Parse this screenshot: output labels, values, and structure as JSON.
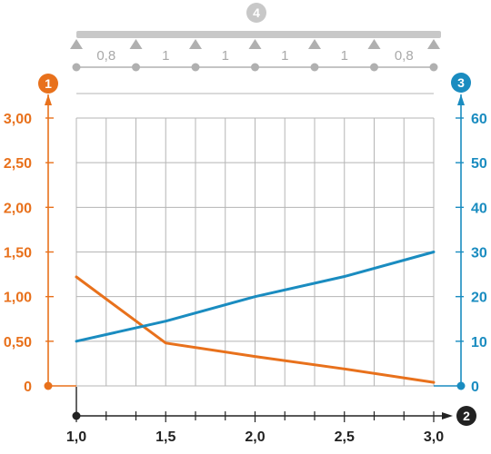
{
  "colors": {
    "left_axis": "#e8711c",
    "right_axis": "#1a8cc0",
    "grid": "#b5b5b5",
    "beam": "#c8c8c8",
    "support": "#b0b0b0",
    "x_axis": "#222222"
  },
  "markers": {
    "left_axis": "1",
    "x_axis": "2",
    "right_axis": "3",
    "beam": "4"
  },
  "beam": {
    "spans": [
      "0,8",
      "1",
      "1",
      "1",
      "1",
      "0,8"
    ]
  },
  "chart_data": {
    "type": "line",
    "title": "",
    "x": {
      "min": 1.0,
      "max": 3.0,
      "ticks": [
        1.0,
        1.5,
        2.0,
        2.5,
        3.0
      ],
      "tick_labels": [
        "1,0",
        "1,5",
        "2,0",
        "2,5",
        "3,0"
      ],
      "minor_step": 0.1667
    },
    "y_left": {
      "min": 0,
      "max": 3.0,
      "ticks": [
        0,
        0.5,
        1.0,
        1.5,
        2.0,
        2.5,
        3.0
      ],
      "tick_labels": [
        "0",
        "0,50",
        "1,00",
        "1,50",
        "2,00",
        "2,50",
        "3,00"
      ]
    },
    "y_right": {
      "min": 0,
      "max": 60,
      "ticks": [
        0,
        10,
        20,
        30,
        40,
        50,
        60
      ],
      "tick_labels": [
        "0",
        "10",
        "20",
        "30",
        "40",
        "50",
        "60"
      ]
    },
    "grid": true,
    "series": [
      {
        "axis": "left",
        "color": "#e8711c",
        "x": [
          1.0,
          1.5,
          2.0,
          2.5,
          3.0
        ],
        "y": [
          1.22,
          0.48,
          0.33,
          0.19,
          0.04
        ]
      },
      {
        "axis": "right",
        "color": "#1a8cc0",
        "x": [
          1.0,
          1.5,
          2.0,
          2.5,
          3.0
        ],
        "y": [
          10,
          14.5,
          20,
          24.5,
          30
        ]
      }
    ]
  }
}
